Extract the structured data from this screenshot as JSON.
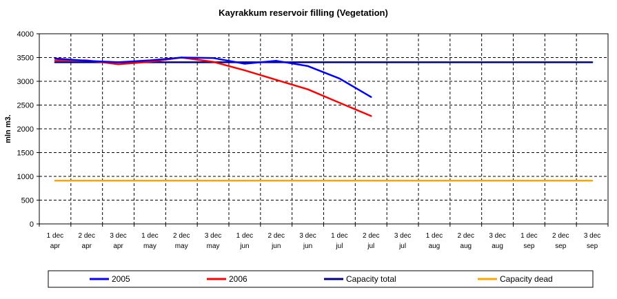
{
  "chart_data": {
    "type": "line",
    "title": "Kayrakkum reservoir filling  (Vegetation)",
    "ylabel": "mln m3.",
    "xlabel": "",
    "ylim": [
      0,
      4000
    ],
    "yticks": [
      0,
      500,
      1000,
      1500,
      2000,
      2500,
      3000,
      3500,
      4000
    ],
    "grid": true,
    "legend_position": "bottom",
    "categories": [
      {
        "line1": "1 dec",
        "line2": "apr"
      },
      {
        "line1": "2 dec",
        "line2": "apr"
      },
      {
        "line1": "3 dec",
        "line2": "apr"
      },
      {
        "line1": "1 dec",
        "line2": "may"
      },
      {
        "line1": "2 dec",
        "line2": "may"
      },
      {
        "line1": "3 dec",
        "line2": "may"
      },
      {
        "line1": "1 dec",
        "line2": "jun"
      },
      {
        "line1": "2 dec",
        "line2": "jun"
      },
      {
        "line1": "3 dec",
        "line2": "jun"
      },
      {
        "line1": "1 dec",
        "line2": "jul"
      },
      {
        "line1": "2 dec",
        "line2": "jul"
      },
      {
        "line1": "3 dec",
        "line2": "jul"
      },
      {
        "line1": "1 dec",
        "line2": "aug"
      },
      {
        "line1": "2 dec",
        "line2": "aug"
      },
      {
        "line1": "3 dec",
        "line2": "aug"
      },
      {
        "line1": "1 dec",
        "line2": "sep"
      },
      {
        "line1": "2 dec",
        "line2": "sep"
      },
      {
        "line1": "3 dec",
        "line2": "sep"
      }
    ],
    "series": [
      {
        "name": "2005",
        "color": "#0000FF",
        "values": [
          3480,
          3430,
          3400,
          3440,
          3500,
          3490,
          3370,
          3430,
          3320,
          3060,
          2670,
          null,
          null,
          null,
          null,
          null,
          null,
          null
        ]
      },
      {
        "name": "2006",
        "color": "#FF0000",
        "values": [
          3440,
          3440,
          3360,
          3410,
          3500,
          3410,
          3230,
          3030,
          2830,
          2550,
          2270,
          null,
          null,
          null,
          null,
          null,
          null,
          null
        ]
      },
      {
        "name": "Capacity total",
        "color": "#000080",
        "values": [
          3400,
          3400,
          3400,
          3400,
          3400,
          3400,
          3400,
          3400,
          3400,
          3400,
          3400,
          3400,
          3400,
          3400,
          3400,
          3400,
          3400,
          3400
        ]
      },
      {
        "name": "Capacity dead",
        "color": "#FFA500",
        "values": [
          910,
          910,
          910,
          910,
          910,
          910,
          910,
          910,
          910,
          910,
          910,
          910,
          910,
          910,
          910,
          910,
          910,
          910
        ]
      }
    ]
  }
}
